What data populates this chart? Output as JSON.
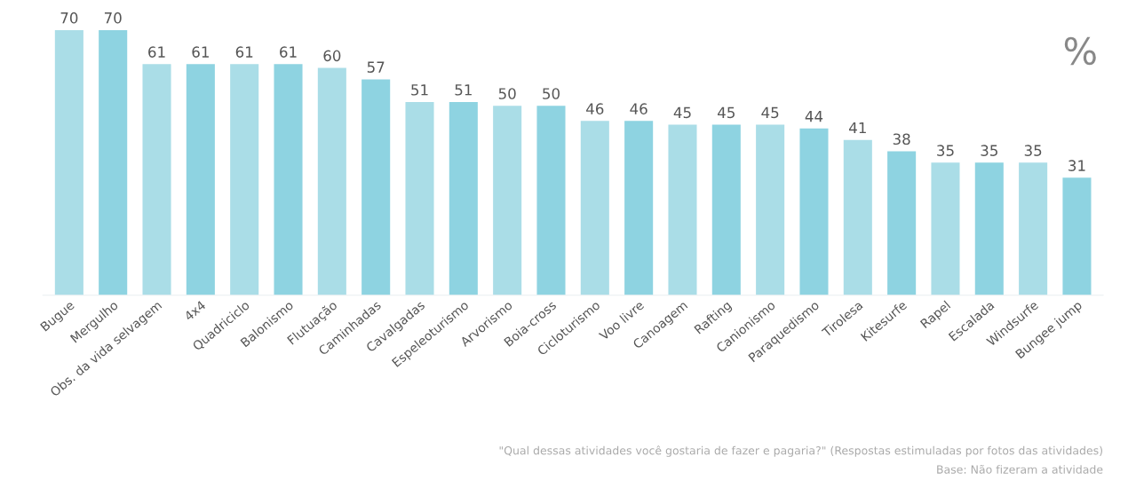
{
  "chart_data": {
    "type": "bar",
    "ylabel": "%",
    "categories": [
      "Bugue",
      "Mergulho",
      "Obs. da vida selvagem",
      "4x4",
      "Quadriciclo",
      "Balonismo",
      "Flutuação",
      "Caminhadas",
      "Cavalgadas",
      "Espeleoturismo",
      "Arvorismo",
      "Boia-cross",
      "Cicloturismo",
      "Voo livre",
      "Canoagem",
      "Rafting",
      "Canionismo",
      "Paraquedismo",
      "Tirolesa",
      "Kitesurfe",
      "Rapel",
      "Escalada",
      "Windsurfe",
      "Bungee jump"
    ],
    "values": [
      70,
      70,
      61,
      61,
      61,
      61,
      60,
      57,
      51,
      51,
      50,
      50,
      46,
      46,
      45,
      45,
      45,
      44,
      41,
      38,
      35,
      35,
      35,
      31
    ],
    "colors": [
      "#aadde7",
      "#8ed3e1",
      "#aadde7",
      "#8ed3e1",
      "#aadde7",
      "#8ed3e1",
      "#aadde7",
      "#8ed3e1",
      "#aadde7",
      "#8ed3e1",
      "#aadde7",
      "#8ed3e1",
      "#aadde7",
      "#8ed3e1",
      "#aadde7",
      "#8ed3e1",
      "#aadde7",
      "#8ed3e1",
      "#aadde7",
      "#8ed3e1",
      "#aadde7",
      "#8ed3e1",
      "#aadde7",
      "#8ed3e1"
    ],
    "data_labels": true,
    "grid": false,
    "legend": false,
    "tick_labels": "x",
    "annotations": [
      "\"Qual dessas atividades você gostaria de fazer e pagaria?\" (Respostas estimuladas por fotos das atividades)",
      "Base: Não fizeram a atividade"
    ]
  }
}
